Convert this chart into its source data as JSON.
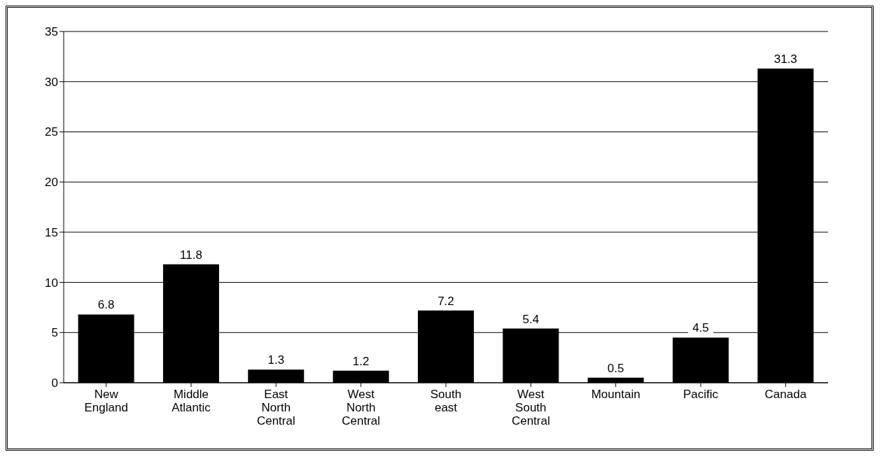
{
  "chart_data": {
    "type": "bar",
    "categories": [
      "New England",
      "Middle Atlantic",
      "East North Central",
      "West North Central",
      "South east",
      "West South Central",
      "Mountain",
      "Pacific",
      "Canada"
    ],
    "values": [
      6.8,
      11.8,
      1.3,
      1.2,
      7.2,
      5.4,
      0.5,
      4.5,
      31.3
    ],
    "color": "#000000",
    "ylim": [
      0,
      35
    ],
    "yticks": [
      0,
      5,
      10,
      15,
      20,
      25,
      30,
      35
    ],
    "grid": "y",
    "data_labels": true
  }
}
